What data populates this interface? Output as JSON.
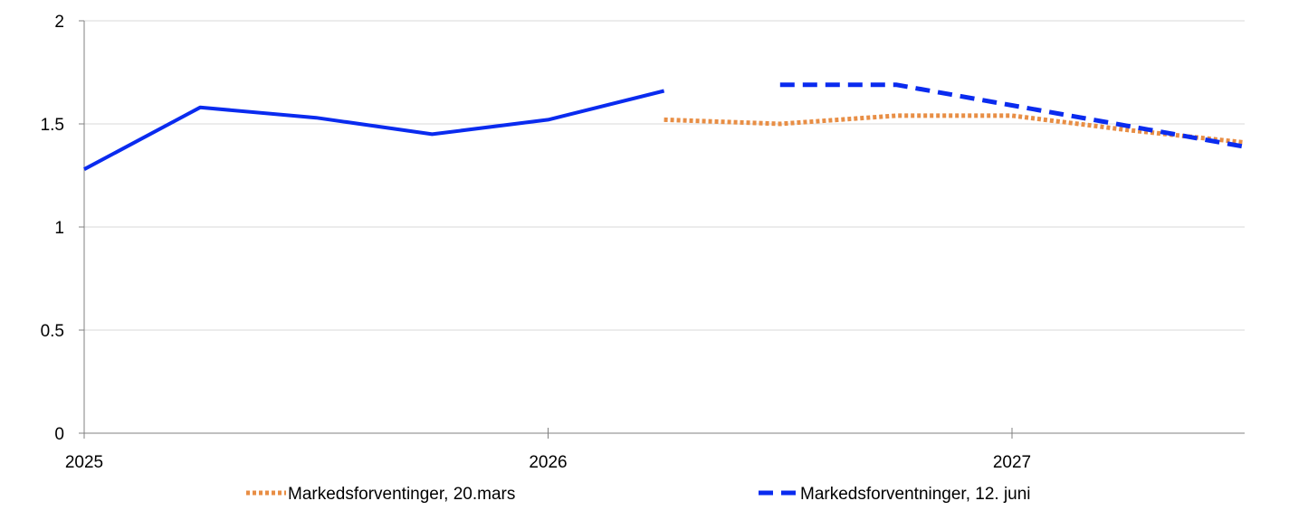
{
  "chart_data": {
    "type": "line",
    "title": "",
    "xlabel": "",
    "ylabel": "",
    "ylim": [
      0,
      2
    ],
    "y_ticks": [
      "0",
      "0.5",
      "1",
      "1.5",
      "2"
    ],
    "x_ticks": [
      "2025",
      "2026",
      "2027"
    ],
    "grid": "horizontal",
    "legend_position": "bottom",
    "series": [
      {
        "id": "actual",
        "style": "solid",
        "color": "#0a2bef",
        "points": [
          {
            "x": 0.0,
            "y": 1.28
          },
          {
            "x": 0.25,
            "y": 1.58
          },
          {
            "x": 0.5,
            "y": 1.53
          },
          {
            "x": 0.75,
            "y": 1.45
          },
          {
            "x": 1.0,
            "y": 1.52
          },
          {
            "x": 1.25,
            "y": 1.66
          }
        ]
      },
      {
        "id": "mar20",
        "name": "Markedsforventinger, 20.mars",
        "style": "dotted",
        "color": "#e88e45",
        "points": [
          {
            "x": 1.25,
            "y": 1.52
          },
          {
            "x": 1.5,
            "y": 1.5
          },
          {
            "x": 1.75,
            "y": 1.54
          },
          {
            "x": 2.0,
            "y": 1.54
          },
          {
            "x": 2.25,
            "y": 1.47
          },
          {
            "x": 2.5,
            "y": 1.41
          }
        ]
      },
      {
        "id": "jun12",
        "name": "Markedsforventninger, 12. juni",
        "style": "dashed",
        "color": "#0a2bef",
        "points": [
          {
            "x": 1.5,
            "y": 1.69
          },
          {
            "x": 1.75,
            "y": 1.69
          },
          {
            "x": 2.0,
            "y": 1.59
          },
          {
            "x": 2.25,
            "y": 1.49
          },
          {
            "x": 2.5,
            "y": 1.39
          }
        ]
      }
    ]
  },
  "legend": {
    "mar20_label": "Markedsforventinger, 20.mars",
    "jun12_label": "Markedsforventninger, 12. juni"
  }
}
